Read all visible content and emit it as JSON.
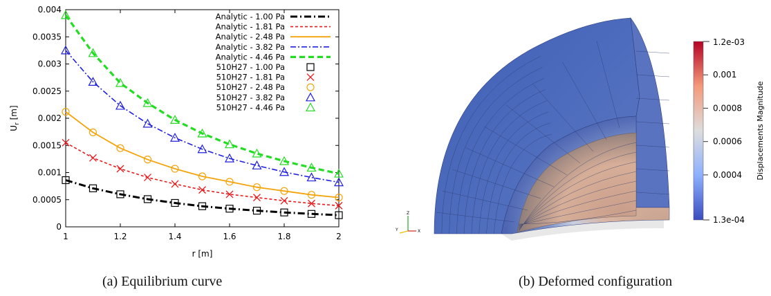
{
  "chart_data": [
    {
      "type": "line",
      "xlabel": "r [m]",
      "ylabel": "U",
      "ylabel_sub": "r",
      "ylabel_unit": " [m]",
      "xlim": [
        1,
        2
      ],
      "ylim": [
        0,
        0.004
      ],
      "xticks": [
        1,
        1.2,
        1.4,
        1.6,
        1.8,
        2
      ],
      "xtick_labels": [
        "1",
        "1.2",
        "1.4",
        "1.6",
        "1.8",
        "2"
      ],
      "yticks": [
        0,
        0.0005,
        0.001,
        0.0015,
        0.002,
        0.0025,
        0.003,
        0.0035,
        0.004
      ],
      "ytick_labels": [
        "0",
        "0.0005",
        "0.001",
        "0.0015",
        "0.002",
        "0.0025",
        "0.003",
        "0.0035",
        "0.004"
      ],
      "legend_position": "top-right",
      "x": [
        1,
        1.1,
        1.2,
        1.3,
        1.4,
        1.5,
        1.6,
        1.7,
        1.8,
        1.9,
        2
      ],
      "series": [
        {
          "name": "Analytic - 1.00 Pa",
          "kind": "line",
          "color": "#000000",
          "dash": "10,4,2,4",
          "width": 3,
          "values": [
            0.00086,
            0.00071,
            0.0006,
            0.00051,
            0.00044,
            0.00038,
            0.000335,
            0.000298,
            0.000265,
            0.000238,
            0.000215
          ]
        },
        {
          "name": "Analytic - 1.81 Pa",
          "kind": "line",
          "color": "#e8191b",
          "dash": "4,3",
          "width": 1.6,
          "values": [
            0.00155,
            0.00127,
            0.00107,
            0.00091,
            0.00079,
            0.00068,
            0.0006,
            0.00054,
            0.00048,
            0.00043,
            0.00039
          ]
        },
        {
          "name": "Analytic - 2.48 Pa",
          "kind": "line",
          "color": "#f5a30a",
          "dash": "",
          "width": 1.8,
          "values": [
            0.00212,
            0.00174,
            0.00145,
            0.00124,
            0.00107,
            0.00093,
            0.00083,
            0.00073,
            0.00066,
            0.00059,
            0.00054
          ]
        },
        {
          "name": "Analytic - 3.82 Pa",
          "kind": "line",
          "color": "#1f1fe0",
          "dash": "8,3,2,3",
          "width": 1.6,
          "values": [
            0.00325,
            0.00267,
            0.00223,
            0.0019,
            0.00164,
            0.00143,
            0.00126,
            0.00113,
            0.00101,
            0.00091,
            0.00082
          ]
        },
        {
          "name": "Analytic - 4.46 Pa",
          "kind": "line",
          "color": "#22dd22",
          "dash": "8,5",
          "width": 3.2,
          "values": [
            0.0039,
            0.0032,
            0.00265,
            0.00228,
            0.00197,
            0.00172,
            0.00152,
            0.00135,
            0.00121,
            0.00109,
            0.00098
          ]
        },
        {
          "name": "510H27 - 1.00 Pa",
          "kind": "marker",
          "marker": "square",
          "color": "#000000",
          "values": [
            0.00086,
            0.00071,
            0.0006,
            0.00051,
            0.00044,
            0.00038,
            0.000335,
            0.000298,
            0.000265,
            0.000238,
            0.000215
          ]
        },
        {
          "name": "510H27 - 1.81 Pa",
          "kind": "marker",
          "marker": "x",
          "color": "#e8191b",
          "values": [
            0.00155,
            0.00127,
            0.00107,
            0.00091,
            0.00079,
            0.00068,
            0.0006,
            0.00054,
            0.00048,
            0.00043,
            0.00039
          ]
        },
        {
          "name": "510H27 - 2.48 Pa",
          "kind": "marker",
          "marker": "circle",
          "color": "#f5a30a",
          "values": [
            0.00212,
            0.00174,
            0.00145,
            0.00124,
            0.00107,
            0.00093,
            0.00083,
            0.00073,
            0.00066,
            0.00059,
            0.00054
          ]
        },
        {
          "name": "510H27 - 3.82 Pa",
          "kind": "marker",
          "marker": "triangle",
          "color": "#1f1fe0",
          "values": [
            0.00325,
            0.00267,
            0.00223,
            0.0019,
            0.00164,
            0.00143,
            0.00126,
            0.00113,
            0.00101,
            0.00091,
            0.00082
          ]
        },
        {
          "name": "510H27 - 4.46 Pa",
          "kind": "marker",
          "marker": "triangle",
          "color": "#22dd22",
          "values": [
            0.0039,
            0.0032,
            0.00265,
            0.00228,
            0.00197,
            0.00172,
            0.00152,
            0.00135,
            0.00121,
            0.00109,
            0.00098
          ]
        }
      ]
    },
    {
      "type": "heatmap",
      "colorbar_label": "Displacements Magnitude",
      "colorbar_range": [
        0.00013,
        0.0012
      ],
      "colorbar_ticks": [
        0.0004,
        0.0006,
        0.0008,
        0.001
      ],
      "colorbar_tick_labels": [
        "0.0004",
        "0.0006",
        "0.0008",
        "0.001"
      ],
      "colorbar_min_label": "1.3e-04",
      "colorbar_max_label": "1.2e-03",
      "colormap": [
        "#3b4cc0",
        "#8db0fe",
        "#dddddd",
        "#f49a7b",
        "#b40426"
      ],
      "axis_labels": [
        "X",
        "Y",
        "Z"
      ]
    }
  ],
  "captions": {
    "a": "(a) Equilibrium curve",
    "b": "(b) Deformed configuration"
  }
}
